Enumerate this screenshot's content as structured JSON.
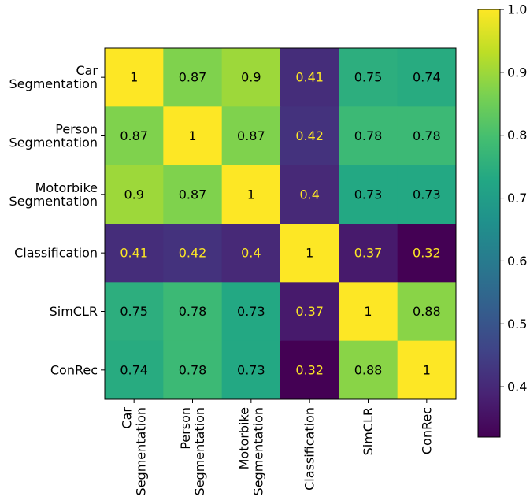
{
  "chart_data": {
    "type": "heatmap",
    "title": "",
    "xlabel": "",
    "ylabel": "",
    "rows": [
      [
        "Car",
        "Segmentation"
      ],
      [
        "Person",
        "Segmentation"
      ],
      [
        "Motorbike",
        "Segmentation"
      ],
      [
        "Classification"
      ],
      [
        "SimCLR"
      ],
      [
        "ConRec"
      ]
    ],
    "columns": [
      [
        "Car",
        "Segmentation"
      ],
      [
        "Person",
        "Segmentation"
      ],
      [
        "Motorbike",
        "Segmentation"
      ],
      [
        "Classification"
      ],
      [
        "SimCLR"
      ],
      [
        "ConRec"
      ]
    ],
    "values": [
      [
        1,
        0.87,
        0.9,
        0.41,
        0.75,
        0.74
      ],
      [
        0.87,
        1,
        0.87,
        0.42,
        0.78,
        0.78
      ],
      [
        0.9,
        0.87,
        1,
        0.4,
        0.73,
        0.73
      ],
      [
        0.41,
        0.42,
        0.4,
        1,
        0.37,
        0.32
      ],
      [
        0.75,
        0.78,
        0.73,
        0.37,
        1,
        0.88
      ],
      [
        0.74,
        0.78,
        0.73,
        0.32,
        0.88,
        1
      ]
    ],
    "colormap": "viridis",
    "vmin": 0.32,
    "vmax": 1.0,
    "colorbar": {
      "ticks": [
        0.4,
        0.5,
        0.6,
        0.7,
        0.8,
        0.9,
        1.0
      ],
      "tick_labels": [
        "0.4",
        "0.5",
        "0.6",
        "0.7",
        "0.8",
        "0.9",
        "1.0"
      ]
    },
    "text_colors": {
      "dark": "#000000",
      "light": "#fde725"
    }
  }
}
